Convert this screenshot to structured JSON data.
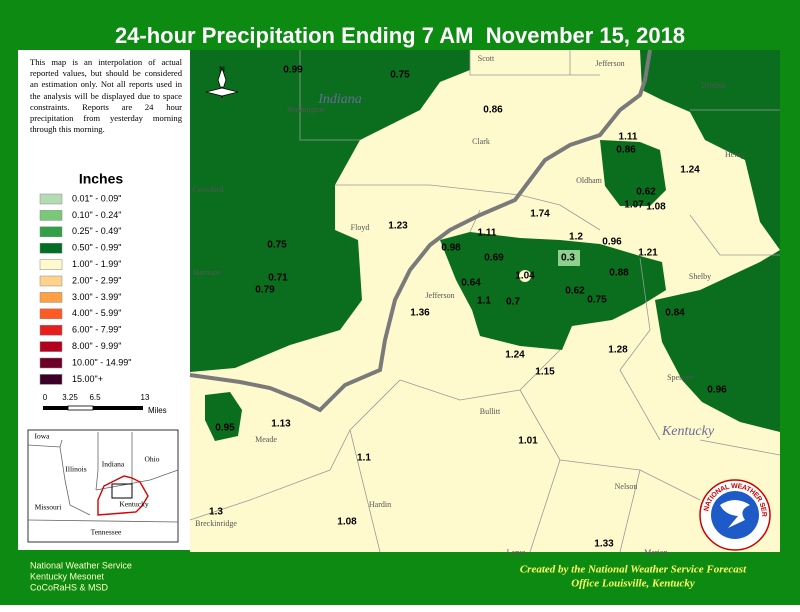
{
  "header": {
    "title": "24-hour Precipitation Ending 7 AM  November 15, 2018"
  },
  "disclaimer": "This map is an interpolation of actual reported values, but should be considered an estimation only. Not all reports used in the analysis will be displayed due to space constraints. Reports are 24 hour precipitation from yesterday morning through this morning.",
  "legend": {
    "title": "Inches",
    "items": [
      {
        "label": "0.01\" - 0.09\"",
        "color": "#b4dcb4"
      },
      {
        "label": "0.10\" - 0.24\"",
        "color": "#78c878"
      },
      {
        "label": "0.25\" - 0.49\"",
        "color": "#32a046"
      },
      {
        "label": "0.50\" - 0.99\"",
        "color": "#006e23"
      },
      {
        "label": "1.00\" - 1.99\"",
        "color": "#fffacd"
      },
      {
        "label": "2.00\" - 2.99\"",
        "color": "#ffd28c"
      },
      {
        "label": "3.00\" - 3.99\"",
        "color": "#ffa046"
      },
      {
        "label": "4.00\" - 5.99\"",
        "color": "#ff5a23"
      },
      {
        "label": "6.00\" - 7.99\"",
        "color": "#e61e1e"
      },
      {
        "label": "8.00\" - 9.99\"",
        "color": "#b4001e"
      },
      {
        "label": "10.00\" - 14.99\"",
        "color": "#6e0028"
      },
      {
        "label": "15.00\"+",
        "color": "#3c0028"
      }
    ]
  },
  "scale": {
    "ticks": [
      "0",
      "3.25",
      "6.5",
      "13"
    ],
    "unit": "Miles"
  },
  "compass": "N",
  "inset": {
    "labels": [
      "Iowa",
      "Illinois",
      "Indiana",
      "Ohio",
      "Missouri",
      "Kentucky",
      "Tennessee"
    ]
  },
  "map": {
    "states": [
      "Indiana",
      "Kentucky"
    ],
    "counties": [
      "Scott",
      "Jefferson",
      "Trimble",
      "Washington",
      "Clark",
      "Henry",
      "Oldham",
      "Crawford",
      "Floyd",
      "Harrison",
      "Jefferson",
      "Shelby",
      "Spencer",
      "Bullitt",
      "Meade",
      "Hardin",
      "Nelson",
      "Breckinridge",
      "Larue",
      "Marion"
    ],
    "readings": [
      0.99,
      0.75,
      0.86,
      1.11,
      0.86,
      1.24,
      0.62,
      1.07,
      1.08,
      1.74,
      1.23,
      1.11,
      1.2,
      0.96,
      1.21,
      0.98,
      0.69,
      0.3,
      0.75,
      0.71,
      0.79,
      1.04,
      0.88,
      0.64,
      0.62,
      0.75,
      1.1,
      0.7,
      1.36,
      0.84,
      1.24,
      1.28,
      1.15,
      0.96,
      0.95,
      1.13,
      1.01,
      1.1,
      1.3,
      1.08,
      1.33
    ]
  },
  "logo": "NATIONAL WEATHER SERVICE",
  "footer": {
    "left": [
      "National Weather Service",
      "Kentucky Mesonet",
      "CoCoRaHS & MSD"
    ],
    "right": [
      "Created by the National Weather Service Forecast",
      "Office Louisville, Kentucky"
    ]
  }
}
